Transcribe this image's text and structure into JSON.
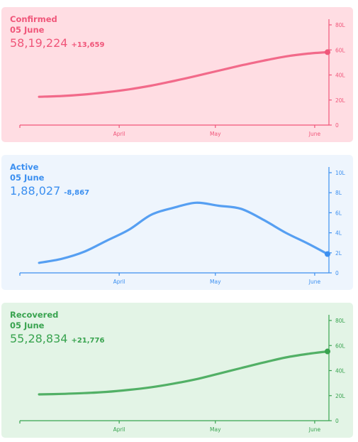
{
  "panels": [
    {
      "title": "Confirmed",
      "date": "05 June",
      "total": "58,19,224",
      "delta": "+13,659",
      "color": "#f0567a",
      "bg": "#ffdde3"
    },
    {
      "title": "Active",
      "date": "05 June",
      "total": "1,88,027",
      "delta": "-8,867",
      "color": "#3b8ff0",
      "bg": "#eef5fd"
    },
    {
      "title": "Recovered",
      "date": "05 June",
      "total": "55,28,834",
      "delta": "+21,776",
      "color": "#38a34f",
      "bg": "#e3f4e6"
    }
  ],
  "chart_data": [
    {
      "type": "line",
      "title": "Confirmed",
      "x": [
        "2021-03-07",
        "2021-03-14",
        "2021-03-21",
        "2021-03-28",
        "2021-04-04",
        "2021-04-11",
        "2021-04-18",
        "2021-04-25",
        "2021-05-02",
        "2021-05-09",
        "2021-05-16",
        "2021-05-23",
        "2021-05-30",
        "2021-06-05"
      ],
      "series": [
        {
          "name": "Confirmed",
          "values": [
            22.6,
            23.2,
            24.4,
            26.2,
            28.5,
            31.5,
            35.2,
            39.2,
            43.4,
            47.6,
            51.4,
            54.8,
            57.1,
            58.2
          ]
        }
      ],
      "unit": "L",
      "yticks": [
        "0",
        "20L",
        "40L",
        "60L",
        "80L"
      ],
      "ylim": [
        0,
        80
      ],
      "xticks": [
        "April",
        "May",
        "June"
      ],
      "xtick_dates": [
        "2021-04-01",
        "2021-05-01",
        "2021-06-01"
      ]
    },
    {
      "type": "line",
      "title": "Active",
      "x": [
        "2021-03-07",
        "2021-03-14",
        "2021-03-21",
        "2021-03-28",
        "2021-04-04",
        "2021-04-11",
        "2021-04-18",
        "2021-04-25",
        "2021-05-02",
        "2021-05-09",
        "2021-05-16",
        "2021-05-23",
        "2021-05-30",
        "2021-06-05"
      ],
      "series": [
        {
          "name": "Active",
          "values": [
            1.0,
            1.4,
            2.1,
            3.2,
            4.3,
            5.8,
            6.5,
            7.0,
            6.7,
            6.4,
            5.3,
            4.0,
            2.9,
            1.88
          ]
        }
      ],
      "unit": "L",
      "yticks": [
        "0",
        "2L",
        "4L",
        "6L",
        "8L",
        "10L"
      ],
      "ylim": [
        0,
        10
      ],
      "xticks": [
        "April",
        "May",
        "June"
      ],
      "xtick_dates": [
        "2021-04-01",
        "2021-05-01",
        "2021-06-01"
      ]
    },
    {
      "type": "line",
      "title": "Recovered",
      "x": [
        "2021-03-07",
        "2021-03-14",
        "2021-03-21",
        "2021-03-28",
        "2021-04-04",
        "2021-04-11",
        "2021-04-18",
        "2021-04-25",
        "2021-05-02",
        "2021-05-09",
        "2021-05-16",
        "2021-05-23",
        "2021-05-30",
        "2021-06-05"
      ],
      "series": [
        {
          "name": "Recovered",
          "values": [
            21.0,
            21.4,
            22.0,
            23.0,
            24.6,
            26.7,
            29.6,
            33.1,
            37.5,
            42.0,
            46.4,
            50.5,
            53.4,
            55.3
          ]
        }
      ],
      "unit": "L",
      "yticks": [
        "0",
        "20L",
        "40L",
        "60L",
        "80L"
      ],
      "ylim": [
        0,
        80
      ],
      "xticks": [
        "April",
        "May",
        "June"
      ],
      "xtick_dates": [
        "2021-04-01",
        "2021-05-01",
        "2021-06-01"
      ]
    }
  ]
}
